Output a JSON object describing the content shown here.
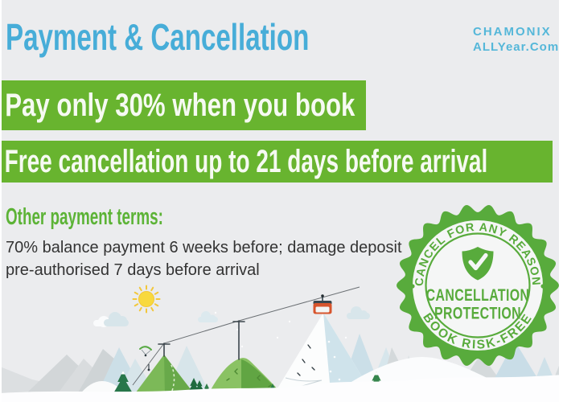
{
  "title": "Payment & Cancellation",
  "logo": {
    "line1": "CHAMONIX",
    "line2": "ALLYear.Com"
  },
  "banners": {
    "pay": "Pay only 30% when you book",
    "cancel": "Free cancellation up to 21 days before arrival"
  },
  "terms": {
    "heading": "Other payment terms:",
    "line1": "70% balance payment 6 weeks before; damage deposit",
    "line2": "pre-authorised 7 days before arrival"
  },
  "badge": {
    "top": "CANCEL FOR ANY REASON",
    "middle1": "CANCELLATION",
    "middle2": "PROTECTION",
    "bottom": "BOOK RISK-FREE"
  },
  "colors": {
    "background": "#ebecee",
    "title_blue": "#47add8",
    "logo_blue": "#55b7d9",
    "banner_green": "#68b42f",
    "heading_green": "#5cb336",
    "badge_green": "#58ab3c",
    "body_text": "#333333",
    "gondola_red": "#d7552d"
  },
  "icons": {
    "badge_icon": "shield-check-icon",
    "scene_icons": [
      "sun-icon",
      "cloud-icon",
      "mountain-icon",
      "pine-tree-icon",
      "gondola-icon",
      "ski-lift-icon",
      "paraglider-icon"
    ]
  }
}
